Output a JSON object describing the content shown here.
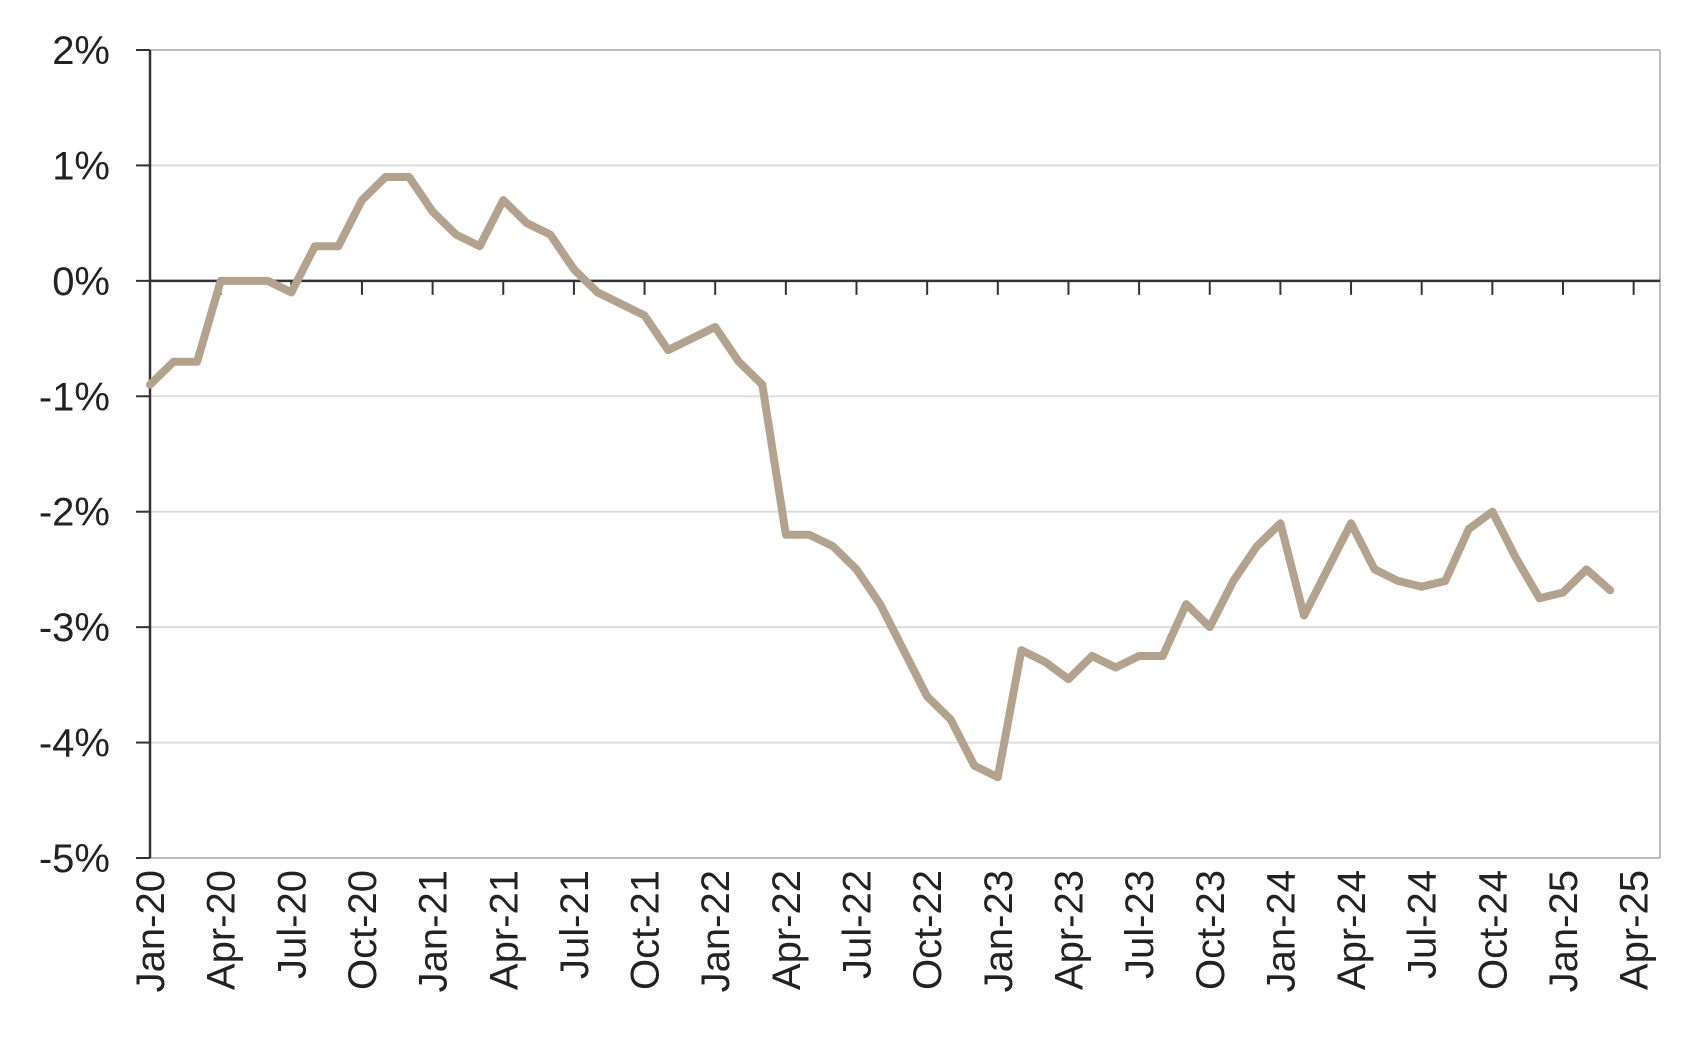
{
  "chart_data": {
    "type": "line",
    "title": "",
    "xlabel": "",
    "ylabel": "",
    "ylim": [
      -5,
      2
    ],
    "y_ticks": [
      2,
      1,
      0,
      -1,
      -2,
      -3,
      -4,
      -5
    ],
    "y_tick_labels": [
      "2%",
      "1%",
      "0%",
      "-1%",
      "-2%",
      "-3%",
      "-4%",
      "-5%"
    ],
    "x_tick_labels": [
      "Jan-20",
      "Apr-20",
      "Jul-20",
      "Oct-20",
      "Jan-21",
      "Apr-21",
      "Jul-21",
      "Oct-21",
      "Jan-22",
      "Apr-22",
      "Jul-22",
      "Oct-22",
      "Jan-23",
      "Apr-23",
      "Jul-23",
      "Oct-23",
      "Jan-24",
      "Apr-24",
      "Jul-24",
      "Oct-24",
      "Jan-25",
      "Apr-25"
    ],
    "grid": true,
    "legend": "none",
    "line_color": "#b3a28d",
    "grid_color": "#dddddd",
    "axis_color": "#333333",
    "frame_color": "#bbbbbb",
    "series": [
      {
        "x": [
          "Jan-20",
          "Feb-20",
          "Mar-20",
          "Apr-20",
          "May-20",
          "Jun-20",
          "Jul-20",
          "Aug-20",
          "Sep-20",
          "Oct-20",
          "Nov-20",
          "Dec-20",
          "Jan-21",
          "Feb-21",
          "Mar-21",
          "Apr-21",
          "May-21",
          "Jun-21",
          "Jul-21",
          "Aug-21",
          "Sep-21",
          "Oct-21",
          "Nov-21",
          "Dec-21",
          "Jan-22",
          "Feb-22",
          "Mar-22",
          "Apr-22",
          "May-22",
          "Jun-22",
          "Jul-22",
          "Aug-22",
          "Sep-22",
          "Oct-22",
          "Nov-22",
          "Dec-22",
          "Jan-23",
          "Feb-23",
          "Mar-23",
          "Apr-23",
          "May-23",
          "Jun-23",
          "Jul-23",
          "Aug-23",
          "Sep-23",
          "Oct-23",
          "Nov-23",
          "Dec-23",
          "Jan-24",
          "Feb-24",
          "Mar-24",
          "Apr-24",
          "May-24",
          "Jun-24",
          "Jul-24",
          "Aug-24",
          "Sep-24",
          "Oct-24",
          "Nov-24",
          "Dec-24",
          "Jan-25",
          "Feb-25",
          "Mar-25"
        ],
        "values": [
          -0.9,
          -0.7,
          -0.7,
          0.0,
          0.0,
          0.0,
          -0.1,
          0.3,
          0.3,
          0.7,
          0.9,
          0.9,
          0.6,
          0.4,
          0.3,
          0.7,
          0.5,
          0.4,
          0.1,
          -0.1,
          -0.2,
          -0.3,
          -0.6,
          -0.5,
          -0.4,
          -0.7,
          -0.9,
          -2.2,
          -2.2,
          -2.3,
          -2.5,
          -2.8,
          -3.2,
          -3.6,
          -3.8,
          -4.2,
          -4.3,
          -3.2,
          -3.3,
          -3.45,
          -3.25,
          -3.35,
          -3.25,
          -3.25,
          -2.8,
          -3.0,
          -2.6,
          -2.3,
          -2.1,
          -2.9,
          -2.5,
          -2.1,
          -2.5,
          -2.6,
          -2.65,
          -2.6,
          -2.15,
          -2.0,
          -2.4,
          -2.75,
          -2.7,
          -2.5,
          -2.68
        ]
      }
    ]
  }
}
